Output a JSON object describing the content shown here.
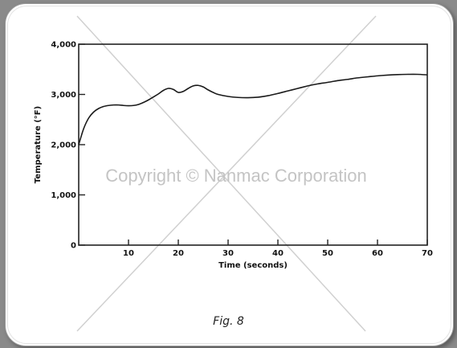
{
  "figure": {
    "caption": "Fig. 8"
  },
  "watermark": {
    "text": "Copyright © Nanmac Corporation"
  },
  "chart_data": {
    "type": "line",
    "title": "",
    "xlabel": "Time (seconds)",
    "ylabel": "Temperature (°F)",
    "xlim": [
      0,
      70
    ],
    "ylim": [
      0,
      4000
    ],
    "x_ticks": [
      10,
      20,
      30,
      40,
      50,
      60,
      70
    ],
    "x_tick_labels": [
      "10",
      "20",
      "30",
      "40",
      "50",
      "60",
      "70"
    ],
    "y_ticks": [
      0,
      1000,
      2000,
      3000,
      4000
    ],
    "y_tick_labels": [
      "0",
      "1,000",
      "2,000",
      "3,000",
      "4,000"
    ],
    "grid": false,
    "legend": "none",
    "series": [
      {
        "x": [
          0,
          1,
          2,
          3,
          4,
          5,
          6,
          7,
          8,
          9,
          10,
          11,
          12,
          13,
          14,
          15,
          16,
          17,
          18,
          19,
          20,
          21,
          22,
          23,
          24,
          25,
          26,
          27,
          28,
          30,
          32,
          34,
          36,
          38,
          40,
          42,
          44,
          46,
          48,
          50,
          52,
          54,
          56,
          58,
          60,
          62,
          64,
          66,
          68,
          70
        ],
        "y": [
          2000,
          2320,
          2530,
          2650,
          2720,
          2760,
          2780,
          2790,
          2790,
          2780,
          2775,
          2780,
          2800,
          2840,
          2890,
          2950,
          3010,
          3080,
          3120,
          3100,
          3040,
          3060,
          3120,
          3170,
          3180,
          3150,
          3090,
          3040,
          3000,
          2960,
          2940,
          2935,
          2945,
          2975,
          3020,
          3070,
          3120,
          3170,
          3210,
          3240,
          3275,
          3300,
          3330,
          3350,
          3370,
          3385,
          3395,
          3400,
          3400,
          3390
        ]
      }
    ]
  }
}
